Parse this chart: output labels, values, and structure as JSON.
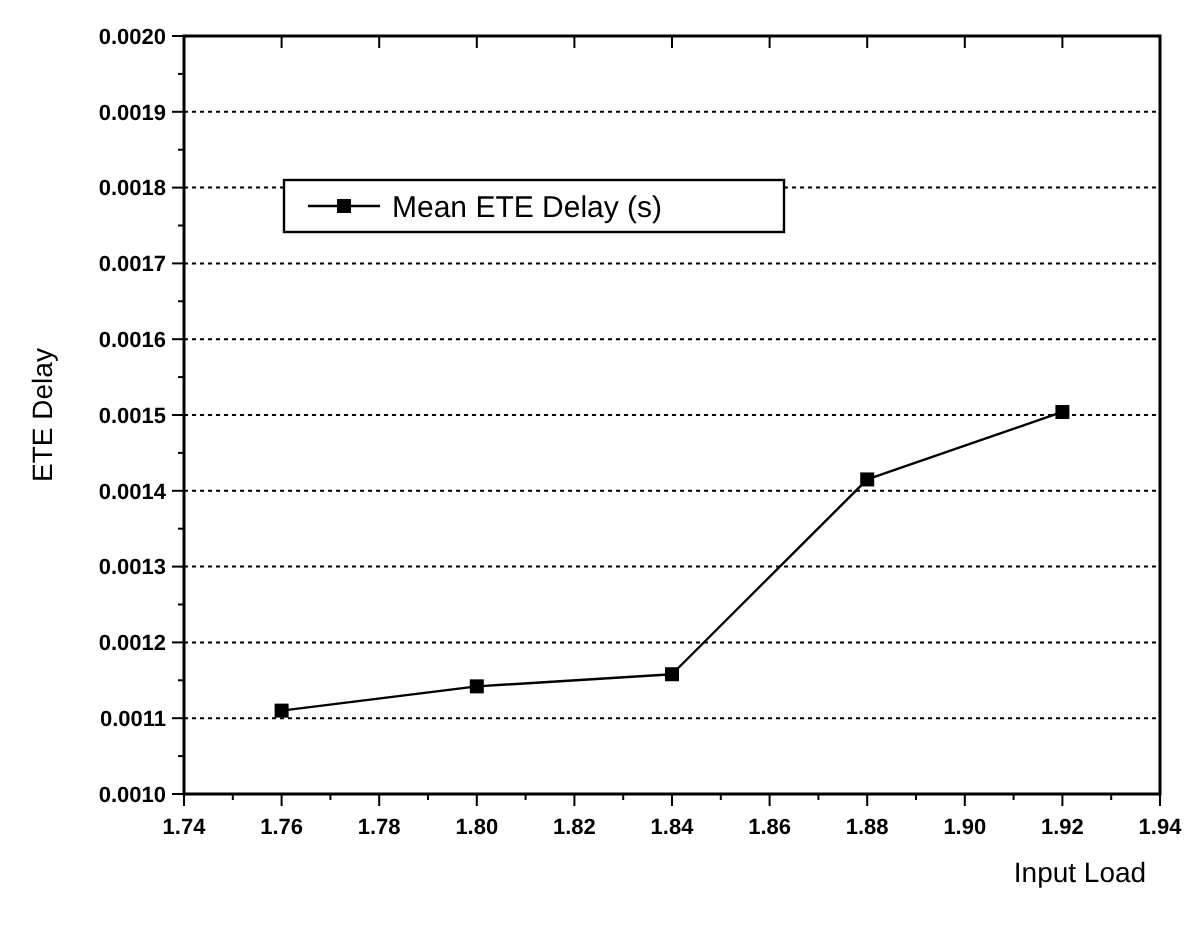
{
  "chart_data": {
    "type": "line",
    "xlabel": "Input Load",
    "ylabel": "ETE Delay",
    "x": [
      1.76,
      1.8,
      1.84,
      1.88,
      1.92
    ],
    "series": [
      {
        "name": "Mean ETE Delay (s)",
        "color": "#000000",
        "values": [
          0.00111,
          0.001142,
          0.001158,
          0.001415,
          0.001504
        ]
      }
    ],
    "xlim": [
      1.74,
      1.94
    ],
    "xticks": [
      {
        "value": 1.74,
        "label": "1.74"
      },
      {
        "value": 1.76,
        "label": "1.76"
      },
      {
        "value": 1.78,
        "label": "1.78"
      },
      {
        "value": 1.8,
        "label": "1.80"
      },
      {
        "value": 1.82,
        "label": "1.82"
      },
      {
        "value": 1.84,
        "label": "1.84"
      },
      {
        "value": 1.86,
        "label": "1.86"
      },
      {
        "value": 1.88,
        "label": "1.88"
      },
      {
        "value": 1.9,
        "label": "1.90"
      },
      {
        "value": 1.92,
        "label": "1.92"
      },
      {
        "value": 1.94,
        "label": "1.94"
      }
    ],
    "ylim": [
      0.001,
      0.002
    ],
    "yticks": [
      {
        "value": 0.001,
        "label": "0.0010"
      },
      {
        "value": 0.0011,
        "label": "0.0011"
      },
      {
        "value": 0.0012,
        "label": "0.0012"
      },
      {
        "value": 0.0013,
        "label": "0.0013"
      },
      {
        "value": 0.0014,
        "label": "0.0014"
      },
      {
        "value": 0.0015,
        "label": "0.0015"
      },
      {
        "value": 0.0016,
        "label": "0.0016"
      },
      {
        "value": 0.0017,
        "label": "0.0017"
      },
      {
        "value": 0.0018,
        "label": "0.0018"
      },
      {
        "value": 0.0019,
        "label": "0.0019"
      },
      {
        "value": 0.002,
        "label": "0.0020"
      }
    ],
    "grid": "y",
    "legend": "top left",
    "marker": "square",
    "line_style": "solid"
  }
}
